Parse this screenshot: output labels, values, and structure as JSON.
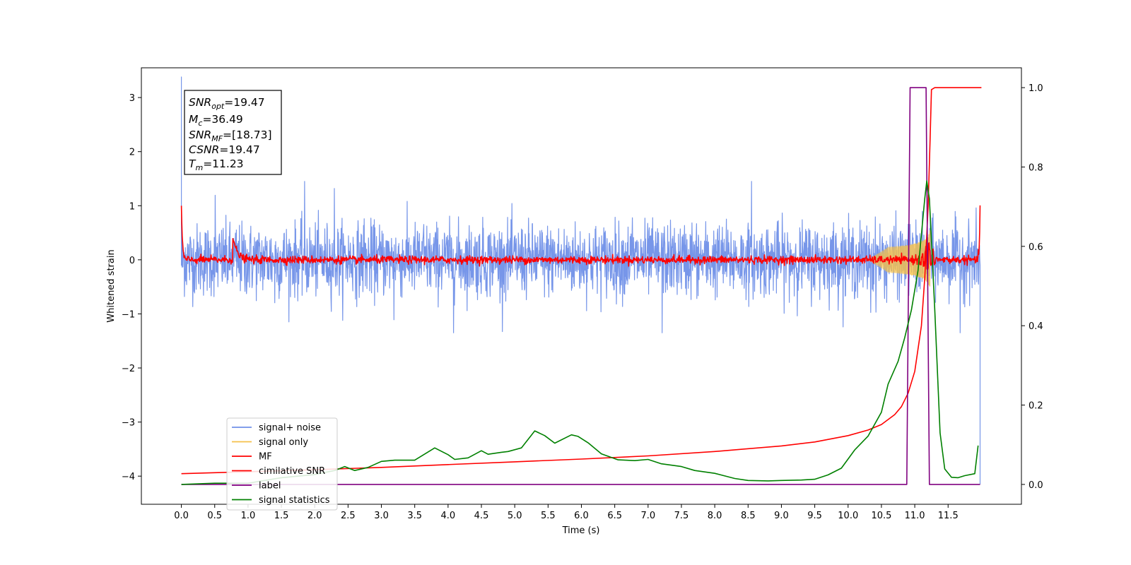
{
  "chart_data": {
    "type": "line",
    "xlabel": "Time (s)",
    "ylabel": "Whitened strain",
    "xlim": [
      -0.6,
      12.6
    ],
    "ylim": [
      -4.52,
      3.55
    ],
    "ylim_right": [
      -0.05,
      1.05
    ],
    "x_ticks": [
      "0.0",
      "0.5",
      "1.0",
      "1.5",
      "2.0",
      "2.5",
      "3.0",
      "3.5",
      "4.0",
      "4.5",
      "5.0",
      "5.5",
      "6.0",
      "6.5",
      "7.0",
      "7.5",
      "8.0",
      "8.5",
      "9.0",
      "9.5",
      "10.0",
      "10.5",
      "11.0",
      "11.5"
    ],
    "y_ticks_left": [
      "3",
      "2",
      "1",
      "0",
      "−1",
      "−2",
      "−3",
      "−4"
    ],
    "y_ticks_right": [
      "1.0",
      "0.8",
      "0.6",
      "0.4",
      "0.2",
      "0.0"
    ],
    "stats": {
      "snr_opt": {
        "symbol": "SNR",
        "sub": "opt",
        "value": "=19.47"
      },
      "mc": {
        "symbol": "M",
        "sub": "c",
        "value": "=36.49"
      },
      "snr_mf": {
        "symbol": "SNR",
        "sub": "MF",
        "value": "=[18.73]"
      },
      "csnr": {
        "symbol": "CSNR",
        "sub": "",
        "value": "=19.47"
      },
      "tm": {
        "symbol": "T",
        "sub": "m",
        "value": "=11.23"
      }
    },
    "legend": {
      "placement": "lower-left",
      "entries": [
        {
          "label": "signal+ noise",
          "color": "#7090e8"
        },
        {
          "label": "signal only",
          "color": "#f5c04a"
        },
        {
          "label": "MF",
          "color": "#ff0000"
        },
        {
          "label": "cimilative SNR",
          "color": "#ff0000"
        },
        {
          "label": "label",
          "color": "#800080"
        },
        {
          "label": "signal statistics",
          "color": "#008000"
        }
      ]
    },
    "series": [
      {
        "name": "signal+ noise",
        "axis": "left",
        "color": "#7090e8",
        "kind": "noise",
        "x_range": [
          0.0,
          11.98
        ],
        "amplitude_std": 0.33,
        "start_spike": 3.38,
        "end_spike": -4.15
      },
      {
        "name": "signal only",
        "axis": "left",
        "color": "#f5c04a",
        "kind": "chirp",
        "x_range": [
          10.3,
          11.23
        ],
        "peak_amplitude": 0.55
      },
      {
        "name": "MF",
        "axis": "left",
        "color": "#ff0000",
        "kind": "mf",
        "x_range": [
          0.0,
          11.98
        ],
        "start_value": 1.0,
        "bump_x": 0.77,
        "bump_value": 0.45,
        "peak_x": 11.2,
        "peak_value": 0.35
      },
      {
        "name": "cimilative SNR",
        "axis": "right",
        "color": "#ff0000",
        "x": [
          0.0,
          1.0,
          2.0,
          3.0,
          4.0,
          5.0,
          6.0,
          7.0,
          8.0,
          9.0,
          9.5,
          10.0,
          10.3,
          10.5,
          10.7,
          10.8,
          10.9,
          11.0,
          11.1,
          11.15,
          11.2,
          11.23,
          11.25,
          11.3,
          11.5,
          12.0
        ],
        "values": [
          0.027,
          0.032,
          0.037,
          0.043,
          0.05,
          0.057,
          0.064,
          0.072,
          0.083,
          0.097,
          0.107,
          0.123,
          0.137,
          0.151,
          0.176,
          0.196,
          0.23,
          0.285,
          0.4,
          0.52,
          0.7,
          0.87,
          0.995,
          1.0,
          1.0,
          1.0
        ]
      },
      {
        "name": "label",
        "axis": "right",
        "color": "#800080",
        "x": [
          0.0,
          10.88,
          10.93,
          11.17,
          11.22,
          11.98
        ],
        "values": [
          0.0,
          0.0,
          1.0,
          1.0,
          0.0,
          0.0
        ]
      },
      {
        "name": "signal statistics",
        "axis": "right",
        "color": "#008000",
        "x": [
          0.0,
          0.5,
          1.0,
          1.5,
          2.0,
          2.3,
          2.45,
          2.6,
          2.8,
          3.0,
          3.2,
          3.5,
          3.8,
          4.0,
          4.1,
          4.3,
          4.5,
          4.6,
          4.8,
          4.9,
          5.1,
          5.3,
          5.45,
          5.6,
          5.85,
          5.95,
          6.1,
          6.3,
          6.55,
          6.8,
          7.0,
          7.2,
          7.5,
          7.7,
          8.0,
          8.3,
          8.5,
          8.8,
          9.0,
          9.3,
          9.5,
          9.7,
          9.9,
          10.1,
          10.3,
          10.5,
          10.6,
          10.75,
          10.85,
          10.95,
          11.05,
          11.15,
          11.18,
          11.22,
          11.3,
          11.38,
          11.45,
          11.55,
          11.65,
          11.75,
          11.9,
          11.95
        ],
        "values": [
          0.0,
          0.003,
          0.003,
          0.017,
          0.025,
          0.035,
          0.045,
          0.035,
          0.043,
          0.058,
          0.061,
          0.061,
          0.092,
          0.075,
          0.063,
          0.067,
          0.085,
          0.076,
          0.081,
          0.083,
          0.092,
          0.135,
          0.123,
          0.104,
          0.125,
          0.121,
          0.105,
          0.077,
          0.062,
          0.06,
          0.063,
          0.052,
          0.045,
          0.035,
          0.028,
          0.015,
          0.01,
          0.009,
          0.01,
          0.011,
          0.013,
          0.024,
          0.041,
          0.087,
          0.122,
          0.182,
          0.253,
          0.31,
          0.37,
          0.44,
          0.54,
          0.72,
          0.765,
          0.72,
          0.44,
          0.13,
          0.039,
          0.018,
          0.017,
          0.022,
          0.027,
          0.098
        ]
      }
    ]
  }
}
